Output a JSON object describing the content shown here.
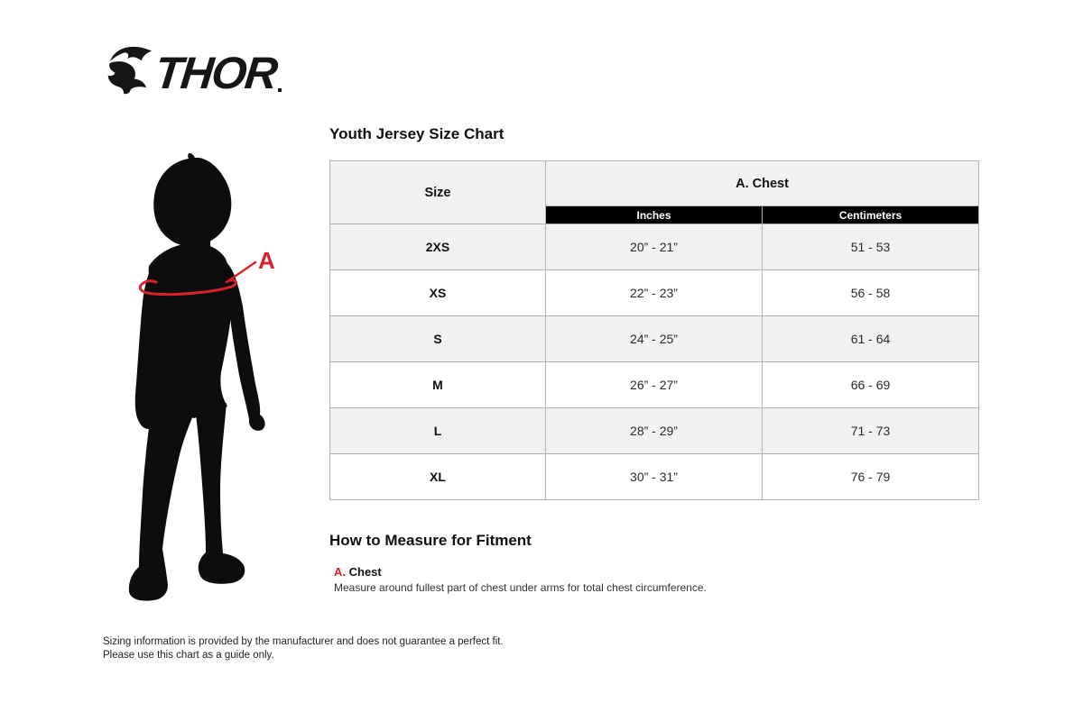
{
  "brand": {
    "logo_text": "THOR"
  },
  "diagram": {
    "label": "A"
  },
  "size_chart": {
    "title": "Youth Jersey Size Chart",
    "columns": {
      "size": "Size",
      "group": "A. Chest",
      "units": [
        "Inches",
        "Centimeters"
      ]
    },
    "rows": [
      {
        "size": "2XS",
        "inches": "20” - 21”",
        "centimeters": "51 - 53"
      },
      {
        "size": "XS",
        "inches": "22” - 23”",
        "centimeters": "56 - 58"
      },
      {
        "size": "S",
        "inches": "24” - 25”",
        "centimeters": "61 - 64"
      },
      {
        "size": "M",
        "inches": "26” - 27”",
        "centimeters": "66 - 69"
      },
      {
        "size": "L",
        "inches": "28” - 29”",
        "centimeters": "71 - 73"
      },
      {
        "size": "XL",
        "inches": "30” - 31”",
        "centimeters": "76 - 79"
      }
    ]
  },
  "how_to_measure": {
    "title": "How to Measure for Fitment",
    "items": [
      {
        "key": "A.",
        "name": "Chest",
        "description": "Measure around fullest part of chest under arms for total chest circumference."
      }
    ]
  },
  "disclaimer": {
    "line1": "Sizing information is provided by the manufacturer and does not guarantee a perfect fit.",
    "line2": "Please use this chart as a guide only."
  },
  "colors": {
    "accent_red": "#da2128",
    "row_shade": "#f1f1f1",
    "table_border": "#b3b3b3",
    "bar_black": "#000000"
  }
}
